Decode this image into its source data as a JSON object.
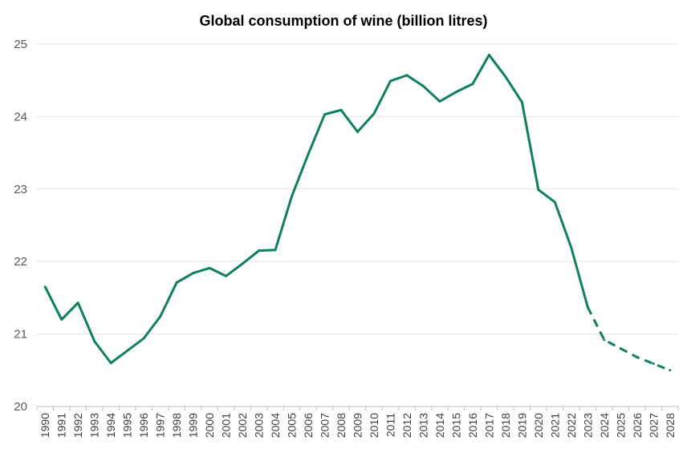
{
  "chart_data": {
    "type": "line",
    "title": "Global consumption of wine (billion litres)",
    "xlabel": "",
    "ylabel": "",
    "ylim": [
      20,
      25
    ],
    "y_ticks": [
      "20",
      "21",
      "22",
      "23",
      "24",
      "25"
    ],
    "grid": "horizontal",
    "line_color": "#0e7f63",
    "grid_color": "#e6e6e6",
    "categories": [
      "1990",
      "1991",
      "1992",
      "1993",
      "1994",
      "1995",
      "1996",
      "1997",
      "1998",
      "1999",
      "2000",
      "2001",
      "2002",
      "2003",
      "2004",
      "2005",
      "2006",
      "2007",
      "2008",
      "2009",
      "2010",
      "2011",
      "2012",
      "2013",
      "2014",
      "2015",
      "2016",
      "2017",
      "2018",
      "2019",
      "2020",
      "2021",
      "2022",
      "2023",
      "2024",
      "2025",
      "2026",
      "2027",
      "2028"
    ],
    "series": [
      {
        "style": "solid",
        "x": [
          "1990",
          "1991",
          "1992",
          "1993",
          "1994",
          "1995",
          "1996",
          "1997",
          "1998",
          "1999",
          "2000",
          "2001",
          "2002",
          "2003",
          "2004",
          "2005",
          "2006",
          "2007",
          "2008",
          "2009",
          "2010",
          "2011",
          "2012",
          "2013",
          "2014",
          "2015",
          "2016",
          "2017",
          "2018",
          "2019",
          "2020",
          "2021",
          "2022",
          "2023"
        ],
        "values": [
          21.65,
          21.2,
          21.43,
          20.9,
          20.6,
          20.77,
          20.94,
          21.24,
          21.71,
          21.84,
          21.91,
          21.8,
          21.97,
          22.15,
          22.16,
          22.9,
          23.48,
          24.03,
          24.09,
          23.79,
          24.04,
          24.49,
          24.57,
          24.42,
          24.21,
          24.34,
          24.45,
          24.85,
          24.55,
          24.2,
          22.99,
          22.82,
          22.19,
          21.37
        ]
      },
      {
        "style": "dashed",
        "x": [
          "2023",
          "2024",
          "2025",
          "2026",
          "2027",
          "2028"
        ],
        "values": [
          21.37,
          20.92,
          20.8,
          20.68,
          20.59,
          20.5
        ]
      }
    ]
  }
}
